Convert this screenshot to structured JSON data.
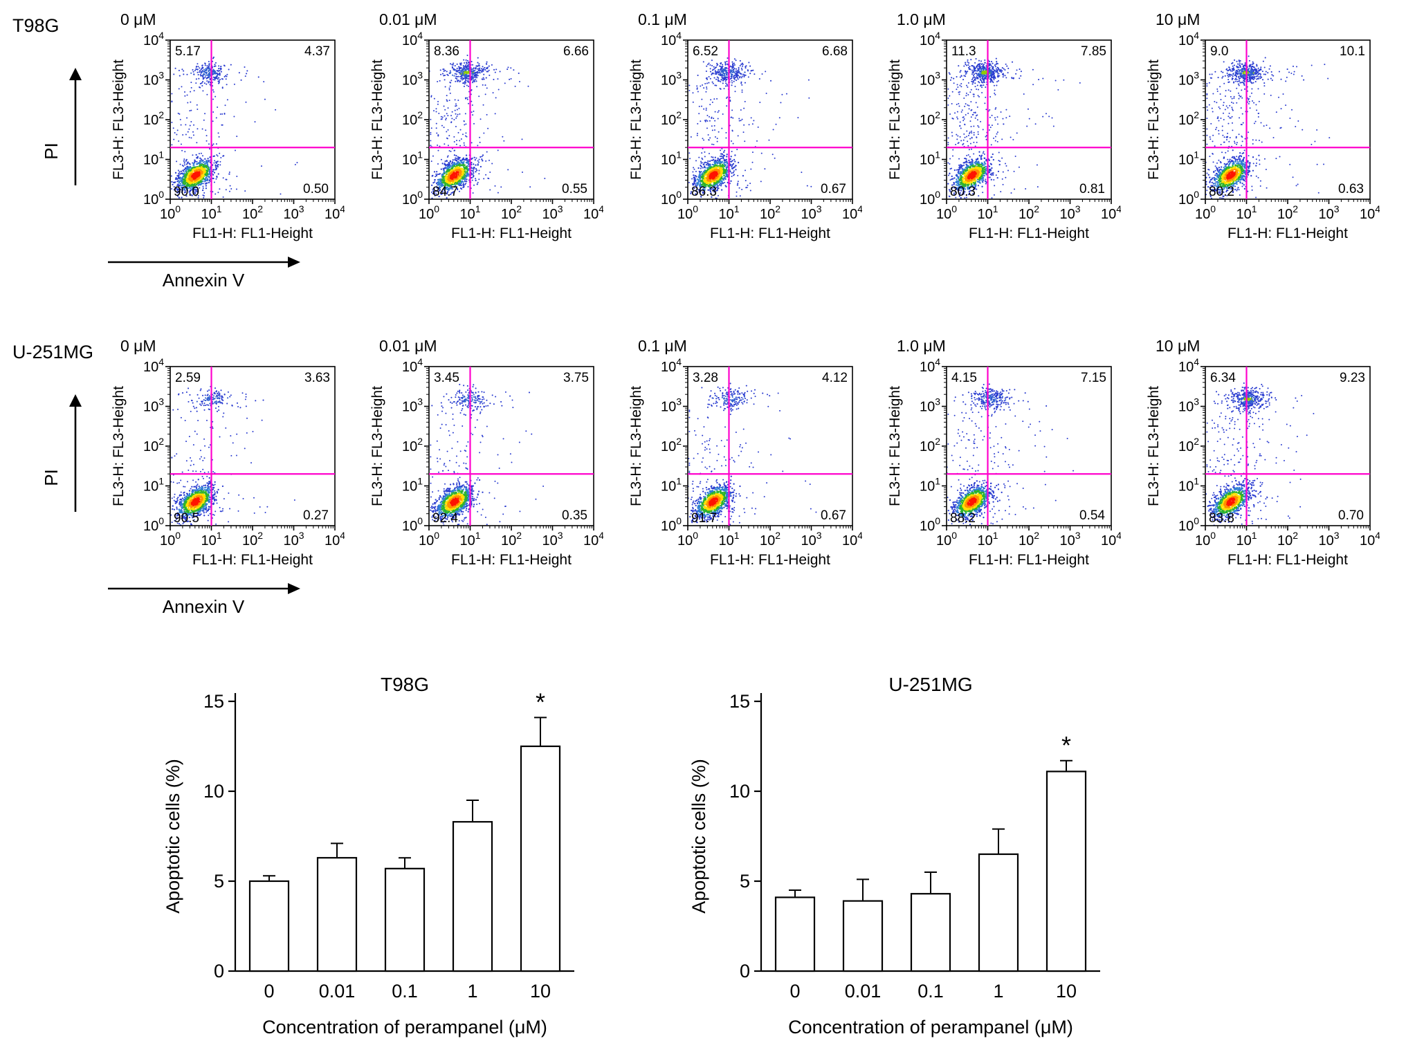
{
  "chart_data": [
    {
      "type": "scatter",
      "subtype": "flow_cytometry_density",
      "cell_line": "T98G",
      "x_axis_label": "FL1-H: FL1-Height",
      "y_axis_label": "FL3-H: FL3-Height",
      "x_meaning": "Annexin V",
      "y_meaning": "PI",
      "axis_log_range": [
        0,
        4
      ],
      "gate_color": "#ff00cc",
      "gate_x_log10": 1.0,
      "gate_y_log10": 1.3,
      "panels": [
        {
          "concentration": "0 μM",
          "quadrant_percent": {
            "upper_left": "5.17",
            "upper_right": "4.37",
            "lower_left": "90.0",
            "lower_right": "0.50"
          }
        },
        {
          "concentration": "0.01 μM",
          "quadrant_percent": {
            "upper_left": "8.36",
            "upper_right": "6.66",
            "lower_left": "84.7",
            "lower_right": "0.55"
          }
        },
        {
          "concentration": "0.1 μM",
          "quadrant_percent": {
            "upper_left": "6.52",
            "upper_right": "6.68",
            "lower_left": "86.3",
            "lower_right": "0.67"
          }
        },
        {
          "concentration": "1.0 μM",
          "quadrant_percent": {
            "upper_left": "11.3",
            "upper_right": "7.85",
            "lower_left": "80.3",
            "lower_right": "0.81"
          }
        },
        {
          "concentration": "10 μM",
          "quadrant_percent": {
            "upper_left": "9.0",
            "upper_right": "10.1",
            "lower_left": "80.2",
            "lower_right": "0.63"
          }
        }
      ]
    },
    {
      "type": "scatter",
      "subtype": "flow_cytometry_density",
      "cell_line": "U-251MG",
      "x_axis_label": "FL1-H: FL1-Height",
      "y_axis_label": "FL3-H: FL3-Height",
      "x_meaning": "Annexin V",
      "y_meaning": "PI",
      "axis_log_range": [
        0,
        4
      ],
      "gate_color": "#ff00cc",
      "gate_x_log10": 1.0,
      "gate_y_log10": 1.3,
      "panels": [
        {
          "concentration": "0 μM",
          "quadrant_percent": {
            "upper_left": "2.59",
            "upper_right": "3.63",
            "lower_left": "90.5",
            "lower_right": "0.27"
          }
        },
        {
          "concentration": "0.01 μM",
          "quadrant_percent": {
            "upper_left": "3.45",
            "upper_right": "3.75",
            "lower_left": "92.4",
            "lower_right": "0.35"
          }
        },
        {
          "concentration": "0.1 μM",
          "quadrant_percent": {
            "upper_left": "3.28",
            "upper_right": "4.12",
            "lower_left": "91.7",
            "lower_right": "0.67"
          }
        },
        {
          "concentration": "1.0 μM",
          "quadrant_percent": {
            "upper_left": "4.15",
            "upper_right": "7.15",
            "lower_left": "88.2",
            "lower_right": "0.54"
          }
        },
        {
          "concentration": "10 μM",
          "quadrant_percent": {
            "upper_left": "6.34",
            "upper_right": "9.23",
            "lower_left": "83.8",
            "lower_right": "0.70"
          }
        }
      ]
    },
    {
      "type": "bar",
      "title": "T98G",
      "categories": [
        "0",
        "0.01",
        "0.1",
        "1",
        "10"
      ],
      "values": [
        5.0,
        6.3,
        5.7,
        8.3,
        12.5
      ],
      "errors": [
        0.3,
        0.8,
        0.6,
        1.2,
        1.6
      ],
      "significant": [
        false,
        false,
        false,
        false,
        true
      ],
      "significance_symbol": "*",
      "xlabel": "Concentration of perampanel (μM)",
      "ylabel": "Apoptotic cells (%)",
      "ylim": [
        0,
        15
      ],
      "yticks": [
        0,
        5,
        10,
        15
      ],
      "bar_fill": "#ffffff",
      "bar_stroke": "#000000",
      "grid": false
    },
    {
      "type": "bar",
      "title": "U-251MG",
      "categories": [
        "0",
        "0.01",
        "0.1",
        "1",
        "10"
      ],
      "values": [
        4.1,
        3.9,
        4.3,
        6.5,
        11.1
      ],
      "errors": [
        0.4,
        1.2,
        1.2,
        1.4,
        0.6
      ],
      "significant": [
        false,
        false,
        false,
        false,
        true
      ],
      "significance_symbol": "*",
      "xlabel": "Concentration of perampanel (μM)",
      "ylabel": "Apoptotic cells (%)",
      "ylim": [
        0,
        15
      ],
      "yticks": [
        0,
        5,
        10,
        15
      ],
      "bar_fill": "#ffffff",
      "bar_stroke": "#000000",
      "grid": false
    }
  ]
}
